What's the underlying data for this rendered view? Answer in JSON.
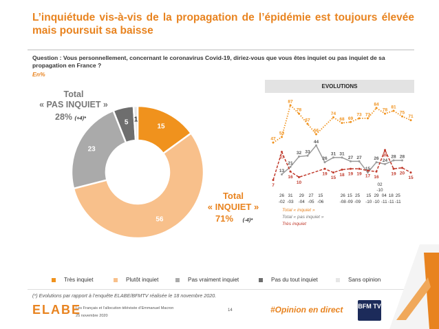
{
  "title": "L’inquiétude vis-à-vis de la propagation de l’épidémie est toujours élevée mais poursuit sa baisse",
  "question": "Question : Vous personnellement, concernant le coronavirus Covid-19, diriez-vous que vous êtes inquiet ou pas inquiet de sa propagation en France ?",
  "unit": "En%",
  "totals": {
    "pas_inquiet_label_1": "Total",
    "pas_inquiet_label_2": "« PAS INQUIET »",
    "pas_inquiet_value": "28%",
    "pas_inquiet_delta": "(+4)*",
    "inquiet_label_1": "Total",
    "inquiet_label_2": "« INQUIET »",
    "inquiet_value": "71%",
    "inquiet_delta": "(-4)*"
  },
  "evolutions": {
    "header": "EVOLUTIONS",
    "legend_total_inquiet": "Total « inquiet »",
    "legend_total_pas_inquiet": "Total « pas inquiet »",
    "legend_tres_inquiet": "Très inquiet"
  },
  "legend": [
    "Très inquiet",
    "Plutôt inquiet",
    "Pas vraiment inquiet",
    "Pas du tout inquiet",
    "Sans opinion"
  ],
  "footnote": "(*) Evolutions par rapport à l’enquête ELABE/BFMTV réalisée le 18 novembre 2020.",
  "footer": {
    "logo": "ELABE",
    "line1": "Les Français et l’allocution télévisée d’Emmanuel Macron",
    "line2": "25 novembre 2020",
    "page": "14",
    "hashtag": "#Opinion en direct",
    "channel": "BFM TV"
  },
  "colors": {
    "tres_inquiet": "#f0921d",
    "plutot_inquiet": "#f8c08b",
    "pas_vraiment": "#aaaaaa",
    "pas_du_tout": "#6e6e6e",
    "sans_opinion": "#e6e6e6",
    "pas_inquiet_line": "#9a9a9a",
    "tres_inquiet_line": "#c0392b"
  },
  "chart_data": [
    {
      "type": "pie",
      "donut": true,
      "categories": [
        "Très inquiet",
        "Plutôt inquiet",
        "Pas vraiment inquiet",
        "Pas du tout inquiet",
        "Sans opinion"
      ],
      "values": [
        15,
        56,
        23,
        5,
        1
      ]
    },
    {
      "type": "line",
      "title": "EVOLUTIONS",
      "x": [
        "26-02",
        "31-03",
        "29-04",
        "27-05",
        "15-06",
        "26-08",
        "15-09",
        "25-09",
        "15-10",
        "29-10",
        "04-11",
        "10-11",
        "18-11",
        "25-11"
      ],
      "tick_labels_top": [
        "26",
        "31",
        "29",
        "27",
        "15",
        "26",
        "15",
        "25",
        "15",
        "29",
        "04",
        "18",
        "25"
      ],
      "tick_labels_bottom": [
        "-02",
        "-03",
        "-04",
        "-05",
        "-06",
        "-08",
        "-09",
        "-09",
        "-10",
        "-10",
        "-11",
        "-11",
        "-11"
      ],
      "tick_label_extra": [
        "02",
        "-10"
      ],
      "ylim": [
        0,
        95
      ],
      "series": [
        {
          "name": "Total « inquiet »",
          "style": "dotted",
          "points": [
            [
              0,
              47
            ],
            [
              1,
              53
            ],
            [
              2,
              87
            ],
            [
              3,
              78
            ],
            [
              4,
              67
            ],
            [
              5,
              56
            ],
            [
              7,
              74
            ],
            [
              8,
              68
            ],
            [
              9,
              69
            ],
            [
              10,
              73
            ],
            [
              11,
              73
            ],
            [
              12,
              84
            ],
            [
              13,
              78
            ],
            [
              14,
              81
            ],
            [
              15,
              75
            ],
            [
              16,
              71
            ]
          ],
          "labels": [
            [
              "47",
              0,
              47
            ],
            [
              "53",
              1,
              53
            ],
            [
              "87",
              2,
              87
            ],
            [
              "78",
              3,
              78
            ],
            [
              "67",
              4,
              67
            ],
            [
              "56",
              5,
              56
            ],
            [
              "74",
              7,
              74
            ],
            [
              "68",
              8,
              68
            ],
            [
              "69",
              9,
              69
            ],
            [
              "73",
              10,
              73
            ],
            [
              "73",
              11,
              73
            ],
            [
              "84",
              12,
              84
            ],
            [
              "78",
              13,
              78
            ],
            [
              "81",
              14,
              81
            ],
            [
              "75",
              15,
              75
            ],
            [
              "71",
              16,
              71
            ]
          ]
        },
        {
          "name": "Total « pas inquiet »",
          "style": "solid",
          "points": [
            [
              1,
              13
            ],
            [
              2,
              21
            ],
            [
              3,
              32
            ],
            [
              4,
              33
            ],
            [
              5,
              44
            ],
            [
              6,
              26
            ],
            [
              7,
              31
            ],
            [
              8,
              31
            ],
            [
              9,
              27
            ],
            [
              10,
              27
            ],
            [
              11,
              15
            ],
            [
              12,
              26
            ],
            [
              13,
              24
            ],
            [
              14,
              28
            ],
            [
              15,
              28
            ]
          ],
          "labels": [
            [
              "13",
              1,
              13
            ],
            [
              "21",
              2,
              21
            ],
            [
              "32",
              3,
              32
            ],
            [
              "33",
              4,
              33
            ],
            [
              "44",
              5,
              44
            ],
            [
              "26",
              6,
              26
            ],
            [
              "31",
              7,
              31
            ],
            [
              "31",
              8,
              31
            ],
            [
              "27",
              9,
              27
            ],
            [
              "27",
              10,
              27
            ],
            [
              "15",
              11,
              15
            ],
            [
              "26",
              12,
              26
            ],
            [
              "24",
              13,
              24
            ],
            [
              "28",
              14,
              28
            ],
            [
              "28",
              15,
              28
            ]
          ]
        },
        {
          "name": "Très inquiet",
          "style": "dashed",
          "points": [
            [
              0,
              7
            ],
            [
              1,
              37
            ],
            [
              2,
              16
            ],
            [
              3,
              10
            ],
            [
              6,
              19
            ],
            [
              7,
              15
            ],
            [
              8,
              18
            ],
            [
              9,
              19
            ],
            [
              10,
              19
            ],
            [
              11,
              17
            ],
            [
              12,
              16
            ],
            [
              13,
              39
            ],
            [
              14,
              19
            ],
            [
              15,
              20
            ],
            [
              16,
              15
            ]
          ],
          "labels": [
            [
              "7",
              0,
              7
            ],
            [
              "37",
              1,
              37
            ],
            [
              "16",
              2,
              16
            ],
            [
              "10",
              3,
              10
            ],
            [
              "19",
              6,
              19
            ],
            [
              "15",
              7,
              15
            ],
            [
              "18",
              8,
              18
            ],
            [
              "19",
              9,
              19
            ],
            [
              "19",
              10,
              19
            ],
            [
              "17",
              11,
              17
            ],
            [
              "16",
              12,
              16
            ],
            [
              "39",
              13,
              39
            ],
            [
              "19",
              14,
              19
            ],
            [
              "20",
              15,
              20
            ],
            [
              "15",
              16,
              15
            ]
          ]
        }
      ]
    }
  ]
}
